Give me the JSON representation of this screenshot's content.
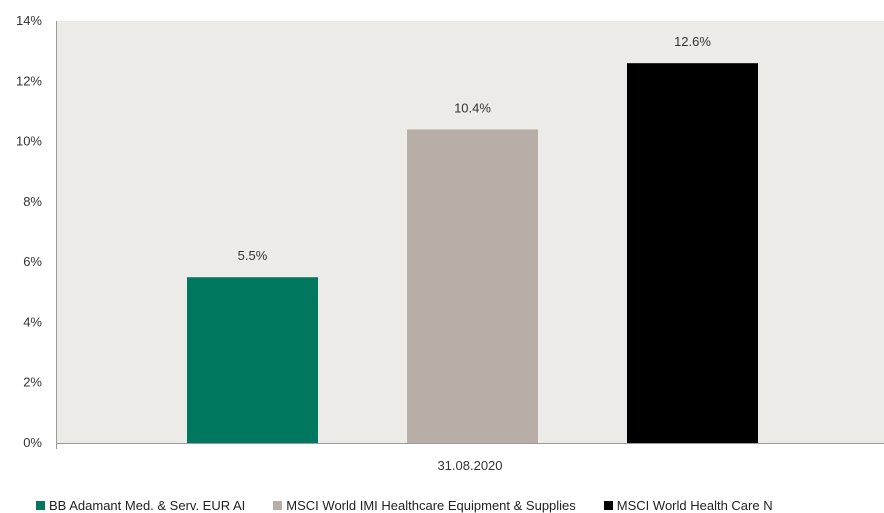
{
  "chart_data": {
    "type": "bar",
    "categories": [
      "31.08.2020"
    ],
    "series": [
      {
        "name": "BB Adamant Med. & Serv. EUR AI",
        "values": [
          5.5
        ],
        "label": "5.5%",
        "color": "#00785f"
      },
      {
        "name": "MSCI World IMI Healthcare Equipment & Supplies",
        "values": [
          10.4
        ],
        "label": "10.4%",
        "color": "#b7aea8"
      },
      {
        "name": "MSCI World Health Care N",
        "values": [
          12.6
        ],
        "label": "12.6%",
        "color": "#000000"
      }
    ],
    "y_ticks": [
      "0%",
      "2%",
      "4%",
      "6%",
      "8%",
      "10%",
      "12%",
      "14%"
    ],
    "ylim": [
      0,
      14
    ],
    "title": "",
    "xlabel": "",
    "ylabel": "",
    "grid": false,
    "legend_position": "bottom",
    "plot_background": "#edebe7"
  }
}
